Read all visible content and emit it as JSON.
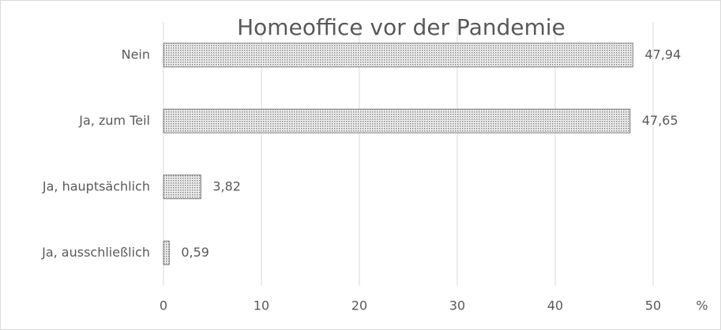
{
  "chart_data": {
    "type": "hbar",
    "title": "Homeoffice vor der Pandemie",
    "categories": [
      "Nein",
      "Ja, zum Teil",
      "Ja, hauptsächlich",
      "Ja, ausschließlich"
    ],
    "values": [
      47.94,
      47.65,
      3.82,
      0.59
    ],
    "value_labels": [
      "47,94",
      "47,65",
      "3,82",
      "0,59"
    ],
    "xlabel": "%",
    "xlim": [
      0,
      50
    ],
    "xticks": [
      0,
      10,
      20,
      30,
      40,
      50
    ],
    "grid": true,
    "color": "#7f7f7f"
  }
}
